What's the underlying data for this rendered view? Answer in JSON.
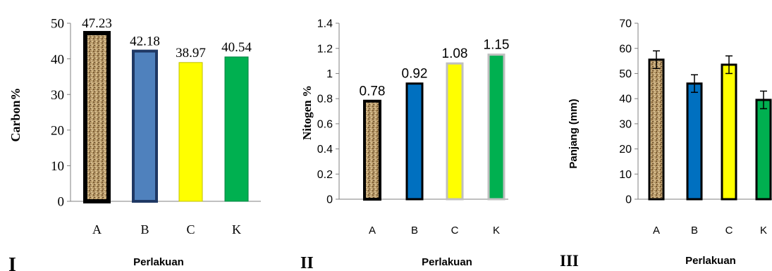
{
  "chart_data": [
    {
      "type": "bar",
      "panel_label": "I",
      "categories": [
        "A",
        "B",
        "C",
        "K"
      ],
      "values": [
        47.23,
        42.18,
        38.97,
        40.54
      ],
      "data_labels": [
        "47.23",
        "42.18",
        "38.97",
        "40.54"
      ],
      "xlabel": "Perlakuan",
      "ylabel": "Carbon%",
      "ylim": [
        0,
        50
      ],
      "yticks": [
        "0",
        "10",
        "20",
        "30",
        "40",
        "50"
      ],
      "grid": false,
      "bar_colors": [
        "#b89a6a",
        "#4f81bd",
        "#ffff00",
        "#00b050"
      ],
      "bar_fills": [
        "texture",
        "solid",
        "solid",
        "solid"
      ]
    },
    {
      "type": "bar",
      "panel_label": "II",
      "categories": [
        "A",
        "B",
        "C",
        "K"
      ],
      "values": [
        0.78,
        0.92,
        1.08,
        1.15
      ],
      "data_labels": [
        "0.78",
        "0.92",
        "1.08",
        "1.15"
      ],
      "xlabel": "Perlakuan",
      "ylabel": "Nitogen %",
      "ylim": [
        0,
        1.4
      ],
      "yticks": [
        "0",
        "0.2",
        "0.4",
        "0.6",
        "0.8",
        "1",
        "1.2",
        "1.4"
      ],
      "grid": false,
      "bar_colors": [
        "#b89a6a",
        "#0070c0",
        "#ffff00",
        "#00b050"
      ],
      "bar_fills": [
        "texture",
        "solid",
        "solid",
        "solid"
      ]
    },
    {
      "type": "bar",
      "panel_label": "III",
      "categories": [
        "A",
        "B",
        "C",
        "K"
      ],
      "values": [
        55.5,
        46,
        53.5,
        39.5
      ],
      "error": [
        3.5,
        3.5,
        3.5,
        3.5
      ],
      "xlabel": "Perlakuan",
      "ylabel": "Panjang  (mm)",
      "ylim": [
        0,
        70
      ],
      "yticks": [
        "0",
        "10",
        "20",
        "30",
        "40",
        "50",
        "60",
        "70"
      ],
      "grid": false,
      "bar_colors": [
        "#b89a6a",
        "#0070c0",
        "#ffff00",
        "#00b050"
      ],
      "bar_fills": [
        "texture",
        "solid",
        "solid",
        "solid"
      ]
    }
  ]
}
